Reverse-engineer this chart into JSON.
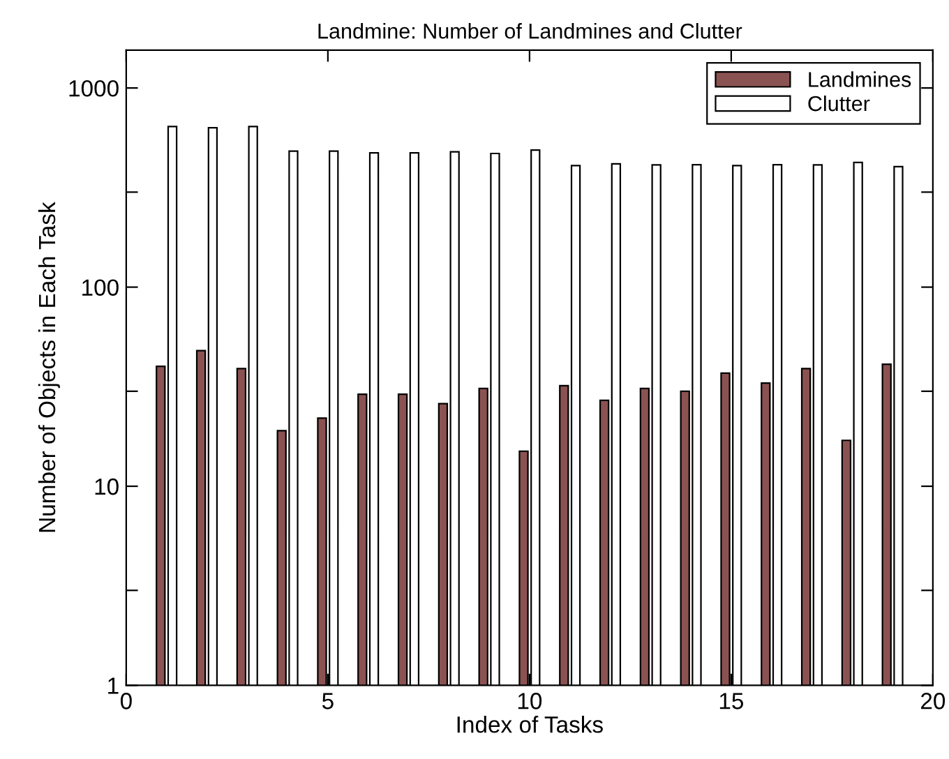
{
  "chart_data": {
    "type": "bar",
    "title": "Landmine: Number of Landmines and Clutter",
    "xlabel": "Index of Tasks",
    "ylabel": "Number of Objects in Each Task",
    "x": [
      1,
      2,
      3,
      4,
      5,
      6,
      7,
      8,
      9,
      10,
      11,
      12,
      13,
      14,
      15,
      16,
      17,
      18,
      19
    ],
    "series": [
      {
        "name": "Landmines",
        "color": "#8b5252",
        "values": [
          40,
          48,
          39,
          19,
          22,
          29,
          29,
          26,
          31,
          15,
          32,
          27,
          31,
          30,
          37,
          33,
          39,
          17,
          41
        ]
      },
      {
        "name": "Clutter",
        "color": "#ffffff",
        "values": [
          640,
          631,
          640,
          482,
          482,
          472,
          472,
          478,
          469,
          488,
          408,
          416,
          411,
          412,
          408,
          412,
          411,
          423,
          403
        ]
      }
    ],
    "log": "y",
    "xlim": [
      0,
      20
    ],
    "xticks": [
      0,
      5,
      10,
      15,
      20
    ],
    "ylim": [
      1,
      1550
    ],
    "yticks": [
      1,
      {
        "value": 3,
        "label": null
      },
      10,
      {
        "value": 30,
        "label": null
      },
      100,
      {
        "value": 300,
        "label": null
      },
      1000
    ],
    "grid": false,
    "legend": "top right"
  }
}
